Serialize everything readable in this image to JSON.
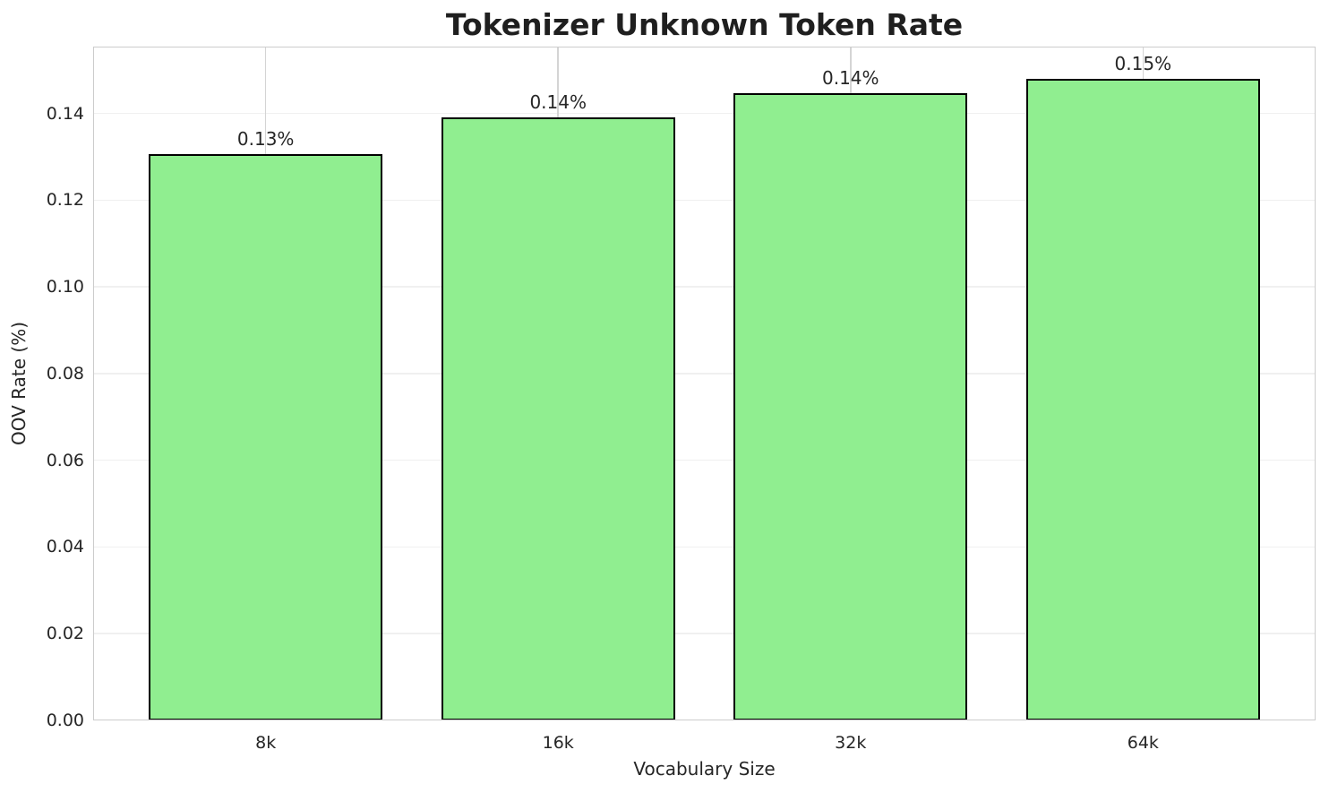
{
  "chart_data": {
    "type": "bar",
    "title": "Tokenizer Unknown Token Rate",
    "xlabel": "Vocabulary Size",
    "ylabel": "OOV Rate (%)",
    "categories": [
      "8k",
      "16k",
      "32k",
      "64k"
    ],
    "values": [
      0.1305,
      0.139,
      0.1447,
      0.148
    ],
    "bar_labels": [
      "0.13%",
      "0.14%",
      "0.14%",
      "0.15%"
    ],
    "yticks": [
      {
        "value": 0.0,
        "label": "0.00"
      },
      {
        "value": 0.02,
        "label": "0.02"
      },
      {
        "value": 0.04,
        "label": "0.04"
      },
      {
        "value": 0.06,
        "label": "0.06"
      },
      {
        "value": 0.08,
        "label": "0.08"
      },
      {
        "value": 0.1,
        "label": "0.10"
      },
      {
        "value": 0.12,
        "label": "0.12"
      },
      {
        "value": 0.14,
        "label": "0.14"
      }
    ],
    "ylim": [
      0,
      0.1554
    ],
    "xlim": [
      -0.59,
      3.59
    ],
    "bar_width": 0.8,
    "grid": "both",
    "legend": "none",
    "colors": {
      "bar_fill": "#90EE90",
      "bar_edge": "#000000",
      "h_grid": "#f0f0f0",
      "v_grid": "#d4d4d4",
      "spine": "#cccccc",
      "text": "#262626"
    }
  }
}
